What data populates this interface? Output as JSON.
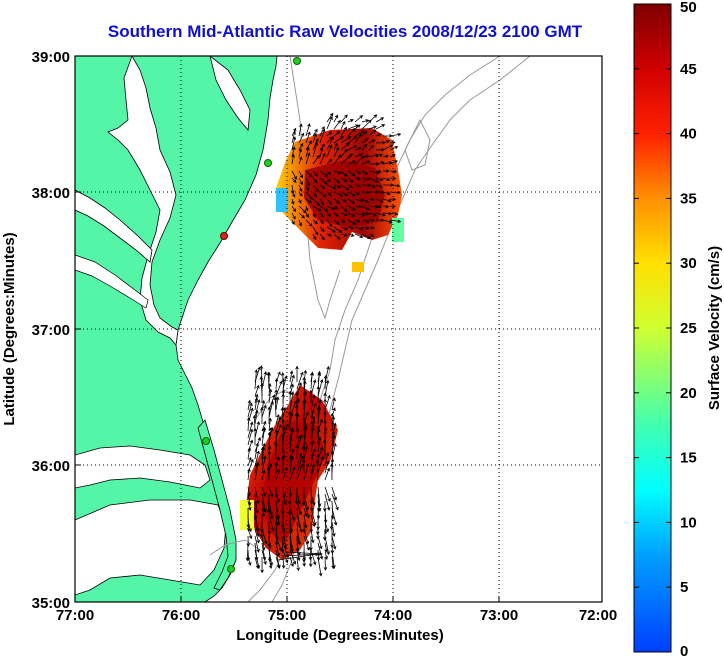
{
  "title": "Southern Mid-Atlantic Raw Velocities 2008/12/23 2100 GMT",
  "x_axis": {
    "label": "Longitude (Degrees:Minutes)",
    "ticks": [
      "77:00",
      "76:00",
      "75:00",
      "74:00",
      "73:00",
      "72:00"
    ]
  },
  "y_axis": {
    "label": "Latitude (Degrees:Minutes)",
    "ticks": [
      "39:00",
      "38:00",
      "37:00",
      "36:00",
      "35:00"
    ]
  },
  "colorbar": {
    "label": "Surface Velocity (cm/s)",
    "ticks": [
      "0",
      "5",
      "10",
      "15",
      "20",
      "25",
      "30",
      "35",
      "40",
      "45",
      "50"
    ],
    "min": 0,
    "max": 50
  },
  "colors": {
    "land": "#55f5a8",
    "title": "#1010d0",
    "radar_site": "#22cc22",
    "radar_site_alt": "#dd2222"
  }
}
